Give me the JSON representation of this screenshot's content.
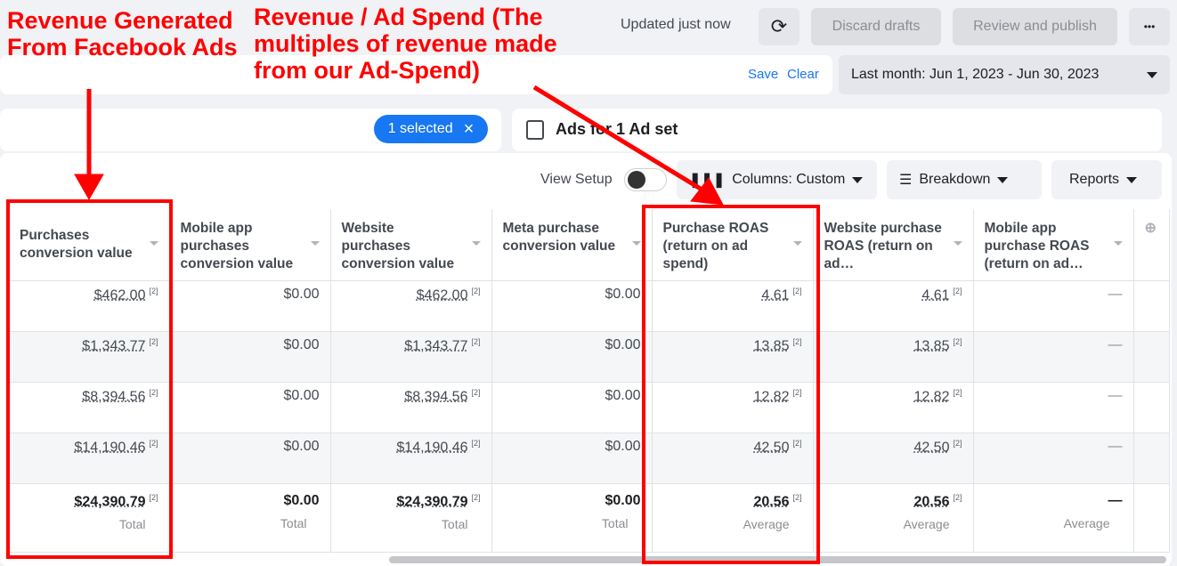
{
  "topbar": {
    "status": "Updated just now",
    "refresh_icon": "refresh-icon",
    "discard": "Discard drafts",
    "publish": "Review and publish",
    "more": "•••"
  },
  "filters": {
    "save": "Save",
    "clear": "Clear",
    "date_range": "Last month: Jun 1, 2023 - Jun 30, 2023"
  },
  "selection": {
    "pill": "1 selected",
    "close": "×",
    "ads_title": "Ads for 1 Ad set"
  },
  "toolbar": {
    "view_setup": "View Setup",
    "columns": "Columns: Custom",
    "breakdown": "Breakdown",
    "reports": "Reports"
  },
  "table": {
    "headers": [
      "Purchases conversion value",
      "Mobile app purchases conversion value",
      "Website purchases conversion value",
      "Meta purchase conversion value",
      "Purchase ROAS (return on ad spend)",
      "Website purchase ROAS (return on ad…",
      "Mobile app purchase ROAS (return on ad…"
    ],
    "rows": [
      [
        "$462.00",
        "$0.00",
        "$462.00",
        "$0.00",
        "4.61",
        "4.61",
        "—"
      ],
      [
        "$1,343.77",
        "$0.00",
        "$1,343.77",
        "$0.00",
        "13.85",
        "13.85",
        "—"
      ],
      [
        "$8,394.56",
        "$0.00",
        "$8,394.56",
        "$0.00",
        "12.82",
        "12.82",
        "—"
      ],
      [
        "$14,190.46",
        "$0.00",
        "$14,190.46",
        "$0.00",
        "42.50",
        "42.50",
        "—"
      ]
    ],
    "totals": [
      "$24,390.79",
      "$0.00",
      "$24,390.79",
      "$0.00",
      "20.56",
      "20.56",
      "—"
    ],
    "total_labels": [
      "Total",
      "Total",
      "Total",
      "Total",
      "Average",
      "Average",
      "Average"
    ],
    "footnote": "[2]"
  },
  "annotations": {
    "left": "Revenue Generated From Facebook Ads",
    "right": "Revenue / Ad Spend (The multiples of revenue made from our Ad-Spend)",
    "color": "#ff0000"
  }
}
